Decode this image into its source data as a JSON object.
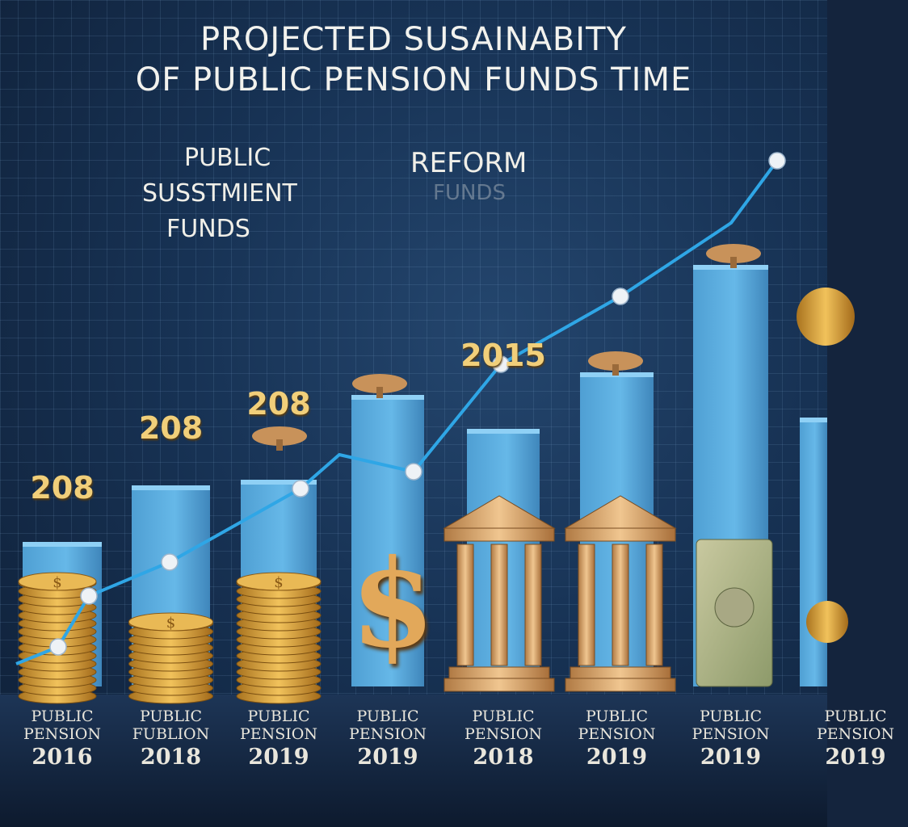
{
  "title": [
    "PROJECTED  SUSAINABITY",
    "OF PUBLIC PENSION FUNDS    TIME"
  ],
  "annotations": {
    "left_line1": "PUBLIC",
    "left_line2": "SUSSTMIENT",
    "left_line3": "FUNDS",
    "center": "REFORM",
    "center_ghost": "FUNDS"
  },
  "colors": {
    "bar": "#5aaee0",
    "line": "#2fa6e6",
    "marker": "#eef2f6",
    "gold": "#d9a441",
    "value_text": "#f1cf7a"
  },
  "chart_data": {
    "type": "bar",
    "categories": [
      {
        "line1": "PUBLIC",
        "line2": "PENSION",
        "year": "2016"
      },
      {
        "line1": "PUBLIC",
        "line2": "FUBLION",
        "year": "2018"
      },
      {
        "line1": "PUBLIC",
        "line2": "PENSION",
        "year": "2019"
      },
      {
        "line1": "PUBLIC",
        "line2": "PENSION",
        "year": "2019"
      },
      {
        "line1": "PUBLIC",
        "line2": "PENSION",
        "year": "2018"
      },
      {
        "line1": "PUBLIC",
        "line2": "PENSION",
        "year": "2019"
      },
      {
        "line1": "PUBLIC",
        "line2": "PENSION",
        "year": "2019"
      },
      {
        "line1": "PUBLIC",
        "line2": "PENSION",
        "year": "2019"
      }
    ],
    "values": [
      25,
      35,
      36,
      51,
      45,
      55,
      74,
      47
    ],
    "value_labels": [
      "208",
      "208",
      "208",
      "",
      "2015",
      "",
      "",
      ""
    ],
    "trend_line": [
      4,
      7,
      16,
      22,
      35,
      41,
      38,
      57,
      69,
      82,
      93
    ],
    "ylim": [
      0,
      100
    ],
    "title": "PROJECTED  SUSAINABITY OF PUBLIC PENSION FUNDS    TIME",
    "xlabel": "",
    "ylabel": ""
  }
}
